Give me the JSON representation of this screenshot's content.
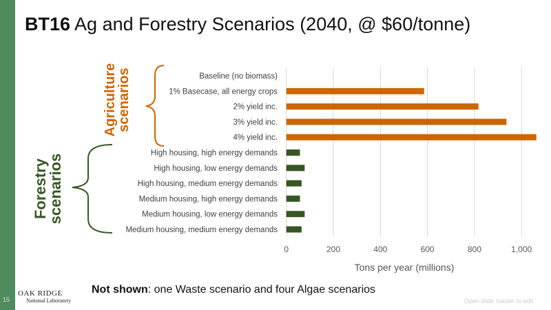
{
  "title": {
    "bold": "BT16",
    "rest": " Ag and Forestry Scenarios (2040, @ $60/tonne)"
  },
  "groups": {
    "agriculture": [
      "Agriculture",
      "scenarios"
    ],
    "forestry": [
      "Forestry",
      "scenarios"
    ]
  },
  "note": {
    "bold": "Not shown",
    "rest": ": one Waste scenario and four Algae scenarios"
  },
  "slide_number": "15",
  "logo": {
    "line1": "OAK RIDGE",
    "line2": "National Laboratory"
  },
  "master_hint": "Open slide master to edit",
  "colors": {
    "agriculture": "#cc6600",
    "forestry": "#375623",
    "sidebar": "#4f8b5e"
  },
  "chart_data": {
    "type": "bar",
    "orientation": "horizontal",
    "categories": [
      "Baseline (no biomass)",
      "1% Basecase, all energy crops",
      "2% yield inc.",
      "3% yield inc.",
      "4% yield inc.",
      "High housing, high energy demands",
      "High housing, low energy demands",
      "High housing, medium energy demands",
      "Medium housing, high energy demands",
      "Medium housing, low energy demands",
      "Medium housing, medium energy demands"
    ],
    "values": [
      0,
      586,
      817,
      936,
      1063,
      58,
      78,
      65,
      58,
      78,
      65
    ],
    "groups": [
      "agriculture",
      "agriculture",
      "agriculture",
      "agriculture",
      "agriculture",
      "forestry",
      "forestry",
      "forestry",
      "forestry",
      "forestry",
      "forestry"
    ],
    "xlabel": "Tons per year (millions)",
    "xlim": [
      0,
      1060
    ],
    "xticks": [
      0,
      200,
      400,
      600,
      800,
      1000
    ],
    "xtick_labels": [
      "0",
      "200",
      "400",
      "600",
      "800",
      "1,000"
    ],
    "grid": true
  }
}
